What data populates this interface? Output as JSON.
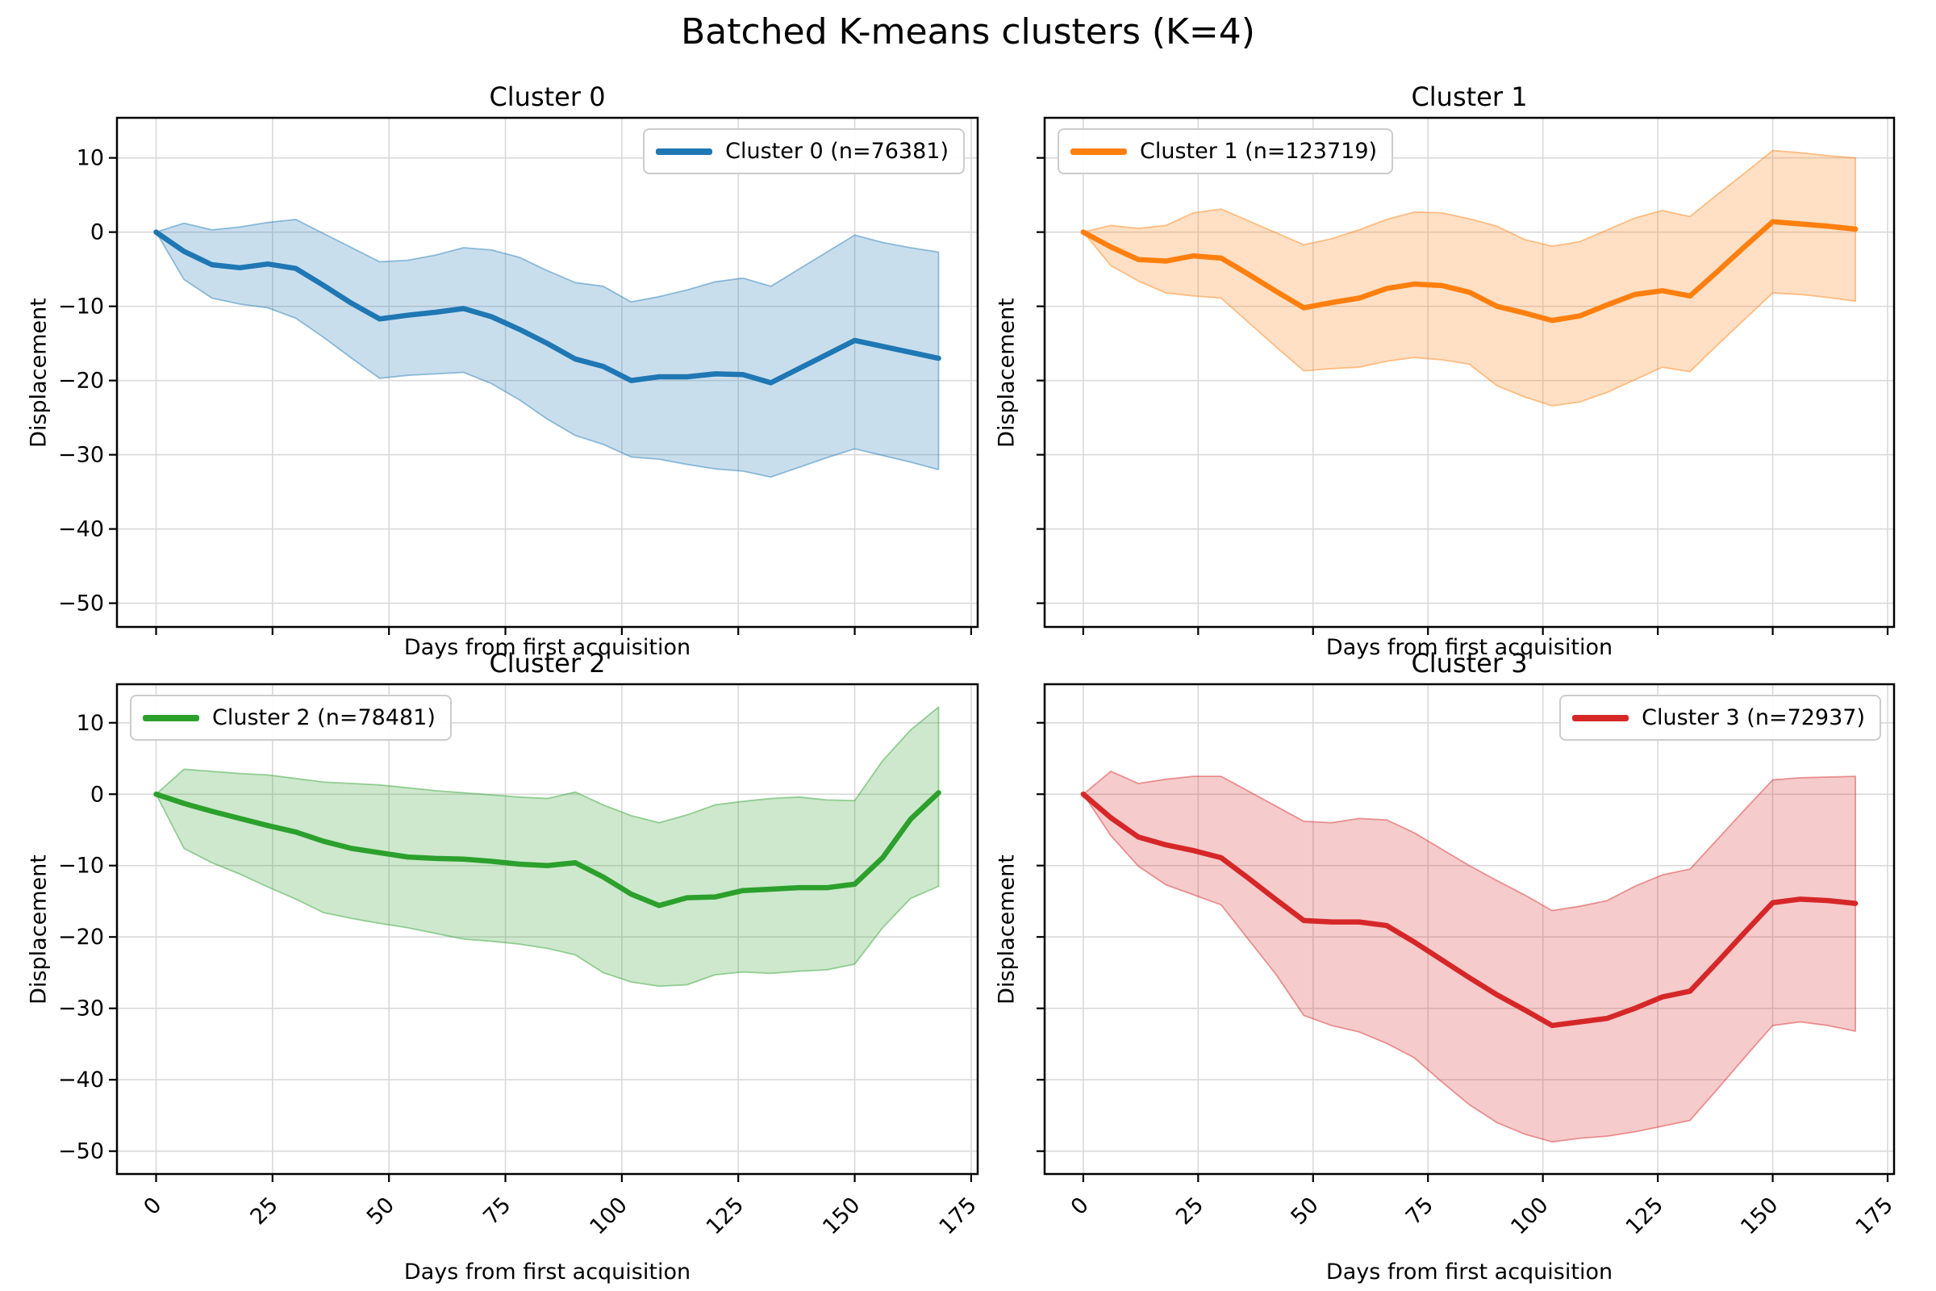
{
  "figure": {
    "suptitle": "Batched K-means clusters (K=4)",
    "background": "#ffffff",
    "grid_color": "#d9d9d9",
    "spine_color": "#000000",
    "text_color": "#000000"
  },
  "axis": {
    "xlabel": "Days from first acquisition",
    "ylabel": "Displacement",
    "xticks": [
      0,
      25,
      50,
      75,
      100,
      125,
      150,
      175
    ],
    "yticks": [
      10,
      0,
      -10,
      -20,
      -30,
      -40,
      -50
    ],
    "xlim": [
      -8.4,
      176.4
    ],
    "ylim": [
      -53.2,
      15.4
    ],
    "grid": true,
    "x_tick_rotation": 45
  },
  "chart_data": [
    {
      "type": "line",
      "title": "Cluster 0",
      "legend_label": "Cluster 0 (n=76381)",
      "n": 76381,
      "color": "#1f77b4",
      "fill_alpha": 0.24,
      "legend_loc": "upper right",
      "x": [
        0,
        6,
        12,
        18,
        24,
        30,
        36,
        42,
        48,
        54,
        60,
        66,
        72,
        78,
        84,
        90,
        96,
        102,
        108,
        114,
        120,
        126,
        132,
        138,
        144,
        150,
        156,
        162,
        168
      ],
      "mean": [
        0,
        -2.6,
        -4.4,
        -4.8,
        -4.3,
        -4.9,
        -7.2,
        -9.6,
        -11.7,
        -11.2,
        -10.8,
        -10.3,
        -11.4,
        -13.1,
        -15.0,
        -17.1,
        -18.1,
        -20.0,
        -19.5,
        -19.5,
        -19.1,
        -19.2,
        -20.3,
        -18.4,
        -16.5,
        -14.6,
        -15.4,
        -16.2,
        -17.0
      ],
      "upper": [
        0,
        1.2,
        0.3,
        0.7,
        1.3,
        1.7,
        -0.2,
        -2.1,
        -4.0,
        -3.8,
        -3.1,
        -2.1,
        -2.4,
        -3.4,
        -5.2,
        -6.8,
        -7.3,
        -9.4,
        -8.7,
        -7.8,
        -6.7,
        -6.2,
        -7.3,
        -5.0,
        -2.7,
        -0.4,
        -1.4,
        -2.1,
        -2.7
      ],
      "lower": [
        0,
        -6.4,
        -8.9,
        -9.7,
        -10.2,
        -11.6,
        -14.2,
        -17.0,
        -19.7,
        -19.3,
        -19.1,
        -18.9,
        -20.4,
        -22.6,
        -25.2,
        -27.4,
        -28.6,
        -30.3,
        -30.6,
        -31.3,
        -31.9,
        -32.2,
        -33.0,
        -31.7,
        -30.4,
        -29.2,
        -30.1,
        -31.0,
        -32.0
      ]
    },
    {
      "type": "line",
      "title": "Cluster 1",
      "legend_label": "Cluster 1 (n=123719)",
      "n": 123719,
      "color": "#ff7f0e",
      "fill_alpha": 0.24,
      "legend_loc": "upper left",
      "x": [
        0,
        6,
        12,
        18,
        24,
        30,
        36,
        42,
        48,
        54,
        60,
        66,
        72,
        78,
        84,
        90,
        96,
        102,
        108,
        114,
        120,
        126,
        132,
        138,
        144,
        150,
        156,
        162,
        168
      ],
      "mean": [
        0,
        -2.0,
        -3.7,
        -3.9,
        -3.2,
        -3.5,
        -5.7,
        -8.0,
        -10.2,
        -9.5,
        -8.9,
        -7.6,
        -7.0,
        -7.2,
        -8.1,
        -10.0,
        -10.9,
        -11.9,
        -11.3,
        -9.8,
        -8.4,
        -7.9,
        -8.6,
        -5.3,
        -1.9,
        1.4,
        1.1,
        0.8,
        0.4
      ],
      "upper": [
        0,
        0.9,
        0.5,
        0.9,
        2.6,
        3.1,
        1.5,
        -0.1,
        -1.7,
        -0.9,
        0.3,
        1.7,
        2.7,
        2.6,
        1.8,
        0.8,
        -1.0,
        -1.9,
        -1.3,
        0.3,
        1.9,
        2.9,
        2.1,
        5.1,
        8.0,
        11.0,
        10.7,
        10.3,
        10.0
      ],
      "lower": [
        0,
        -4.5,
        -6.6,
        -8.2,
        -8.6,
        -8.9,
        -12.2,
        -15.5,
        -18.7,
        -18.4,
        -18.2,
        -17.4,
        -16.9,
        -17.2,
        -17.8,
        -20.7,
        -22.2,
        -23.4,
        -22.9,
        -21.6,
        -19.9,
        -18.2,
        -18.8,
        -15.2,
        -11.7,
        -8.2,
        -8.4,
        -8.8,
        -9.3
      ]
    },
    {
      "type": "line",
      "title": "Cluster 2",
      "legend_label": "Cluster 2 (n=78481)",
      "n": 78481,
      "color": "#2ca02c",
      "fill_alpha": 0.24,
      "legend_loc": "upper left",
      "x": [
        0,
        6,
        12,
        18,
        24,
        30,
        36,
        42,
        48,
        54,
        60,
        66,
        72,
        78,
        84,
        90,
        96,
        102,
        108,
        114,
        120,
        126,
        132,
        138,
        144,
        150,
        156,
        162,
        168
      ],
      "mean": [
        0,
        -1.3,
        -2.4,
        -3.4,
        -4.4,
        -5.3,
        -6.6,
        -7.6,
        -8.2,
        -8.8,
        -9.0,
        -9.1,
        -9.4,
        -9.8,
        -10.0,
        -9.6,
        -11.6,
        -14.0,
        -15.6,
        -14.5,
        -14.4,
        -13.5,
        -13.3,
        -13.1,
        -13.1,
        -12.6,
        -8.9,
        -3.5,
        0.2
      ],
      "upper": [
        0,
        3.5,
        3.2,
        2.9,
        2.7,
        2.2,
        1.7,
        1.5,
        1.3,
        0.9,
        0.5,
        0.2,
        -0.1,
        -0.4,
        -0.6,
        0.3,
        -1.5,
        -3.0,
        -4.0,
        -2.9,
        -1.5,
        -1.0,
        -0.6,
        -0.4,
        -0.8,
        -0.9,
        4.7,
        9.0,
        12.2
      ],
      "lower": [
        0,
        -7.6,
        -9.6,
        -11.2,
        -13.0,
        -14.7,
        -16.6,
        -17.4,
        -18.1,
        -18.7,
        -19.5,
        -20.3,
        -20.6,
        -21.0,
        -21.6,
        -22.5,
        -25.0,
        -26.3,
        -26.9,
        -26.7,
        -25.3,
        -24.9,
        -25.1,
        -24.8,
        -24.6,
        -23.8,
        -18.7,
        -14.6,
        -12.9
      ]
    },
    {
      "type": "line",
      "title": "Cluster 3",
      "legend_label": "Cluster 3 (n=72937)",
      "n": 72937,
      "color": "#d62728",
      "fill_alpha": 0.24,
      "legend_loc": "upper right",
      "x": [
        0,
        6,
        12,
        18,
        24,
        30,
        36,
        42,
        48,
        54,
        60,
        66,
        72,
        78,
        84,
        90,
        96,
        102,
        108,
        114,
        120,
        126,
        132,
        138,
        144,
        150,
        156,
        162,
        168
      ],
      "mean": [
        0,
        -3.3,
        -6.0,
        -7.1,
        -7.9,
        -8.9,
        -11.8,
        -14.8,
        -17.7,
        -17.9,
        -17.9,
        -18.4,
        -20.7,
        -23.2,
        -25.7,
        -28.1,
        -30.2,
        -32.4,
        -31.9,
        -31.4,
        -30.0,
        -28.4,
        -27.6,
        -23.5,
        -19.3,
        -15.2,
        -14.7,
        -14.9,
        -15.3
      ],
      "upper": [
        0,
        3.2,
        1.5,
        2.1,
        2.5,
        2.5,
        0.4,
        -1.7,
        -3.8,
        -4.0,
        -3.4,
        -3.6,
        -5.4,
        -7.7,
        -10.0,
        -12.1,
        -14.1,
        -16.3,
        -15.7,
        -14.9,
        -12.9,
        -11.3,
        -10.5,
        -6.3,
        -2.1,
        2.0,
        2.3,
        2.4,
        2.5
      ],
      "lower": [
        0,
        -5.8,
        -10.1,
        -12.7,
        -14.1,
        -15.5,
        -20.4,
        -25.3,
        -31.0,
        -32.4,
        -33.3,
        -34.9,
        -36.9,
        -40.3,
        -43.5,
        -46.0,
        -47.6,
        -48.7,
        -48.2,
        -47.9,
        -47.3,
        -46.5,
        -45.7,
        -41.3,
        -36.8,
        -32.4,
        -31.9,
        -32.4,
        -33.2
      ]
    }
  ]
}
